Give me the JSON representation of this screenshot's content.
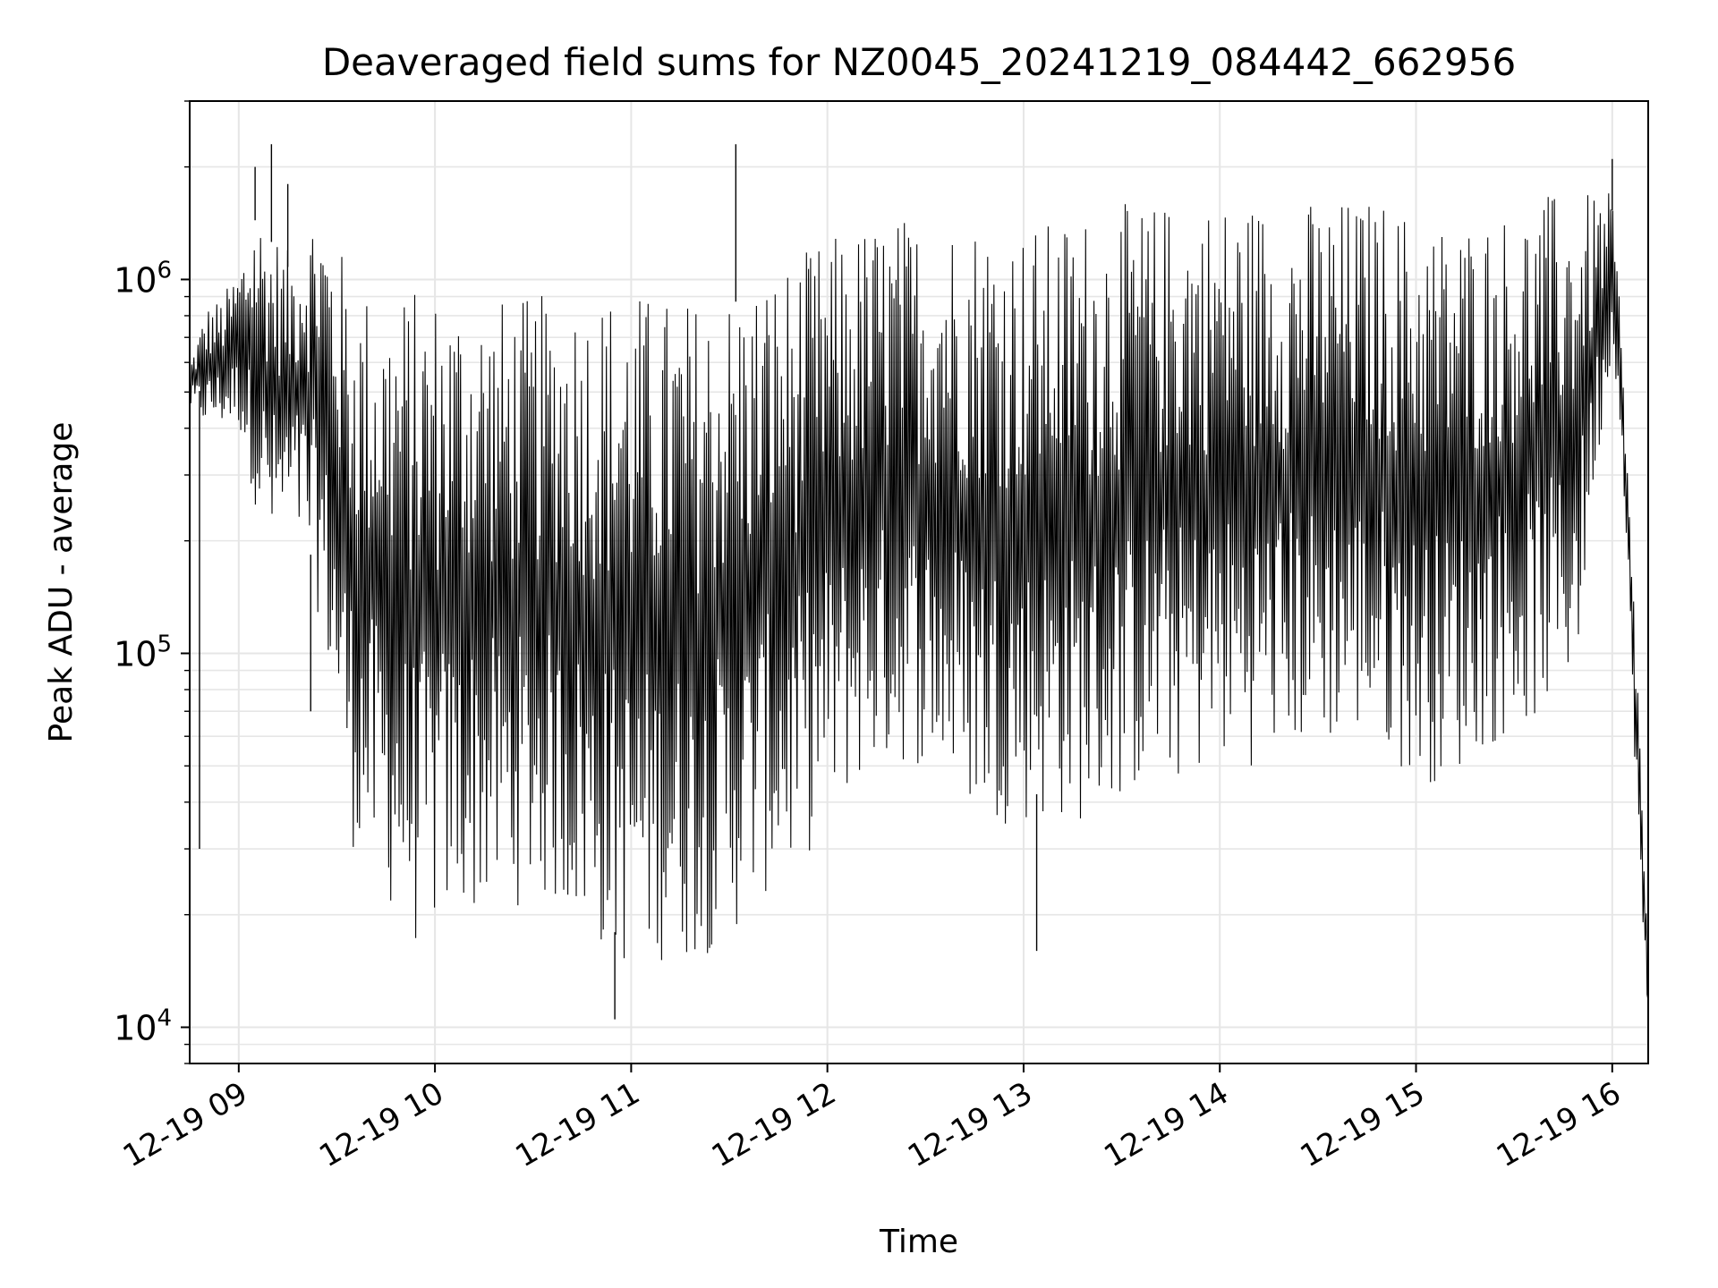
{
  "chart_data": {
    "type": "line",
    "title": "Deaveraged field sums for NZ0045_20241219_084442_662956",
    "xlabel": "Time",
    "ylabel": "Peak ADU - average",
    "yscale": "log",
    "xlim": [
      "2024-12-19 08:45",
      "2024-12-19 16:11"
    ],
    "ylim": [
      8000,
      3000000
    ],
    "grid": true,
    "line_color": "#000000",
    "grid_color": "#e6e6e6",
    "x_ticks": [
      {
        "label": "12-19 09",
        "value": "2024-12-19 09:00"
      },
      {
        "label": "12-19 10",
        "value": "2024-12-19 10:00"
      },
      {
        "label": "12-19 11",
        "value": "2024-12-19 11:00"
      },
      {
        "label": "12-19 12",
        "value": "2024-12-19 12:00"
      },
      {
        "label": "12-19 13",
        "value": "2024-12-19 13:00"
      },
      {
        "label": "12-19 14",
        "value": "2024-12-19 14:00"
      },
      {
        "label": "12-19 15",
        "value": "2024-12-19 15:00"
      },
      {
        "label": "12-19 16",
        "value": "2024-12-19 16:00"
      }
    ],
    "y_ticks": [
      {
        "base": "10",
        "exp": "4",
        "value": 10000
      },
      {
        "base": "10",
        "exp": "5",
        "value": 100000
      },
      {
        "base": "10",
        "exp": "6",
        "value": 1000000
      }
    ],
    "series": [
      {
        "x": [
          "2024-12-19 08:45",
          "2024-12-19 08:50",
          "2024-12-19 08:55",
          "2024-12-19 09:00",
          "2024-12-19 09:05",
          "2024-12-19 09:10",
          "2024-12-19 09:15",
          "2024-12-19 09:20",
          "2024-12-19 09:25",
          "2024-12-19 09:30",
          "2024-12-19 09:35",
          "2024-12-19 09:40",
          "2024-12-19 09:45",
          "2024-12-19 09:50",
          "2024-12-19 09:55",
          "2024-12-19 10:00",
          "2024-12-19 10:10",
          "2024-12-19 10:20",
          "2024-12-19 10:30",
          "2024-12-19 10:40",
          "2024-12-19 10:50",
          "2024-12-19 11:00",
          "2024-12-19 11:10",
          "2024-12-19 11:20",
          "2024-12-19 11:30",
          "2024-12-19 11:40",
          "2024-12-19 11:50",
          "2024-12-19 12:00",
          "2024-12-19 12:10",
          "2024-12-19 12:20",
          "2024-12-19 12:30",
          "2024-12-19 12:40",
          "2024-12-19 12:50",
          "2024-12-19 13:00",
          "2024-12-19 13:10",
          "2024-12-19 13:20",
          "2024-12-19 13:30",
          "2024-12-19 13:40",
          "2024-12-19 13:50",
          "2024-12-19 14:00",
          "2024-12-19 14:10",
          "2024-12-19 14:20",
          "2024-12-19 14:30",
          "2024-12-19 14:40",
          "2024-12-19 14:50",
          "2024-12-19 15:00",
          "2024-12-19 15:10",
          "2024-12-19 15:20",
          "2024-12-19 15:30",
          "2024-12-19 15:40",
          "2024-12-19 15:45",
          "2024-12-19 15:50",
          "2024-12-19 15:55",
          "2024-12-19 16:00",
          "2024-12-19 16:02",
          "2024-12-19 16:04",
          "2024-12-19 16:06",
          "2024-12-19 16:08",
          "2024-12-19 16:10",
          "2024-12-19 16:11"
        ],
        "upper": [
          600000,
          850000,
          900000,
          1100000,
          1600000,
          1400000,
          1200000,
          1500000,
          1700000,
          1300000,
          1000000,
          950000,
          900000,
          950000,
          950000,
          950000,
          950000,
          900000,
          900000,
          950000,
          950000,
          950000,
          900000,
          900000,
          950000,
          1050000,
          1150000,
          1300000,
          1400000,
          1500000,
          1450000,
          1500000,
          1500000,
          1400000,
          1450000,
          1550000,
          1600000,
          1600000,
          1650000,
          1650000,
          1650000,
          1600000,
          1650000,
          1650000,
          1650000,
          1500000,
          1450000,
          1500000,
          1550000,
          1700000,
          1700000,
          1700000,
          1700000,
          1700000,
          1000000,
          400000,
          200000,
          80000,
          30000,
          12000
        ],
        "lower": [
          450000,
          400000,
          400000,
          400000,
          250000,
          180000,
          200000,
          180000,
          120000,
          60000,
          30000,
          25000,
          22000,
          18000,
          16000,
          18000,
          20000,
          20000,
          22000,
          20000,
          16000,
          14000,
          15000,
          15000,
          17000,
          22000,
          25000,
          35000,
          45000,
          50000,
          50000,
          40000,
          35000,
          35000,
          35000,
          35000,
          40000,
          45000,
          45000,
          50000,
          50000,
          55000,
          55000,
          60000,
          55000,
          45000,
          45000,
          55000,
          60000,
          70000,
          75000,
          100000,
          300000,
          600000,
          500000,
          200000,
          80000,
          30000,
          12000,
          10000
        ],
        "spikes": [
          {
            "x": "2024-12-19 08:48",
            "y": 30000
          },
          {
            "x": "2024-12-19 09:05",
            "y": 2000000
          },
          {
            "x": "2024-12-19 09:10",
            "y": 2300000
          },
          {
            "x": "2024-12-19 09:15",
            "y": 1800000
          },
          {
            "x": "2024-12-19 09:22",
            "y": 70000
          },
          {
            "x": "2024-12-19 10:55",
            "y": 10500
          },
          {
            "x": "2024-12-19 11:32",
            "y": 2300000
          },
          {
            "x": "2024-12-19 13:04",
            "y": 16000
          },
          {
            "x": "2024-12-19 16:00",
            "y": 2100000
          }
        ]
      }
    ]
  }
}
